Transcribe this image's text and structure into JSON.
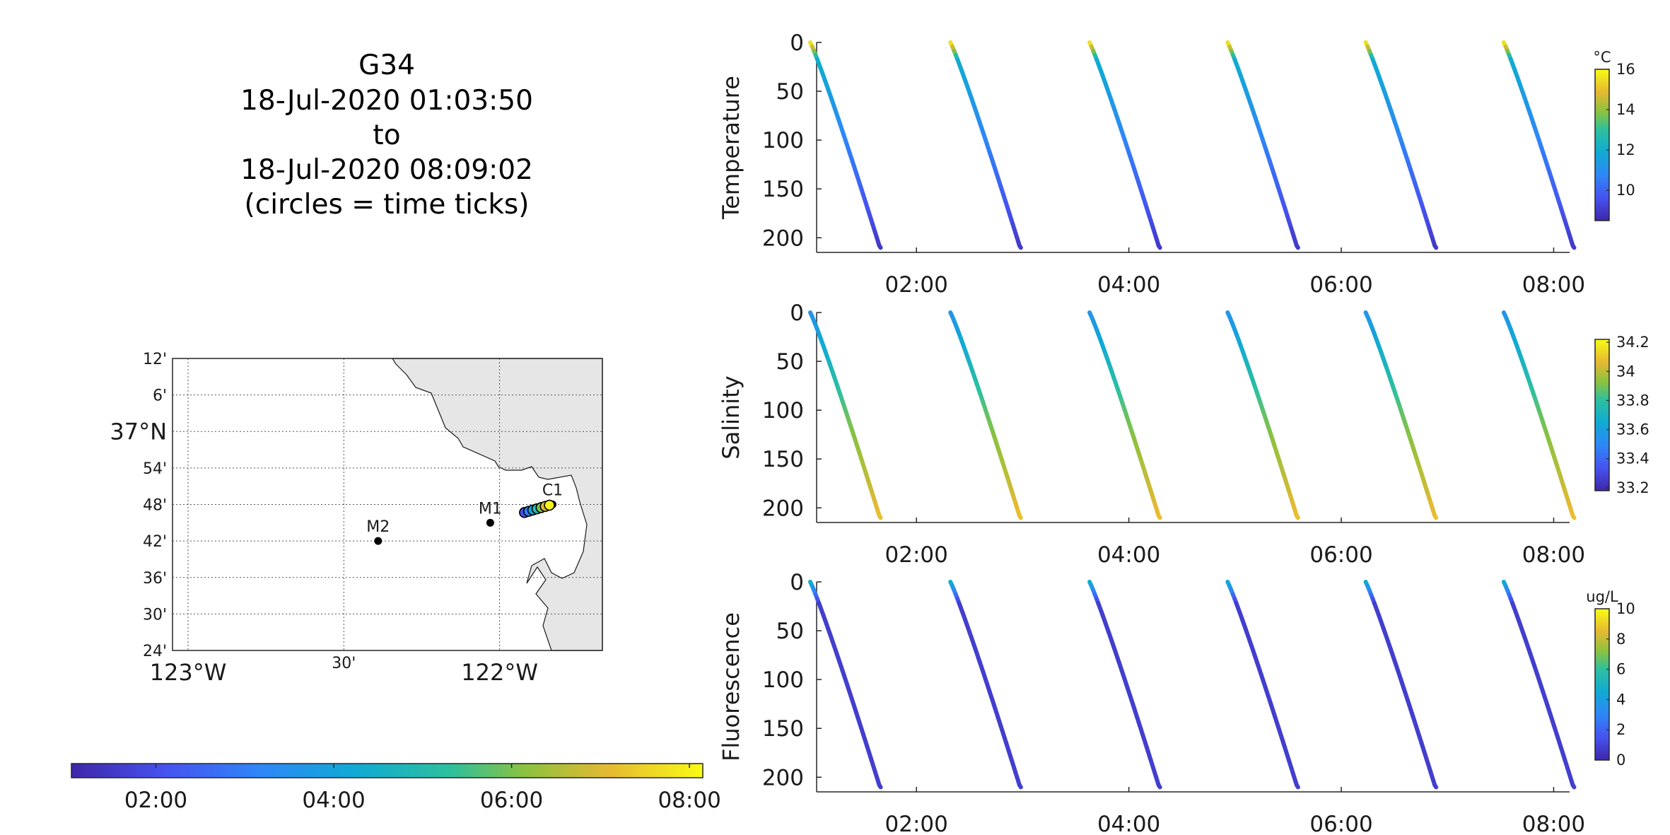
{
  "title": {
    "line1": "G34",
    "line2": "18-Jul-2020 01:03:50",
    "line3": "to",
    "line4": "18-Jul-2020 08:09:02",
    "line5": "(circles = time ticks)"
  },
  "chart_data": [
    {
      "type": "map",
      "lat_labels": [
        "12'",
        "6'",
        "37°N",
        "54'",
        "48'",
        "42'",
        "36'",
        "30'",
        "24'"
      ],
      "lon_labels": [
        "123°W",
        "30'",
        "122°W"
      ],
      "lat_range": [
        36.4,
        37.2
      ],
      "lon_range": [
        -123.05,
        -121.67
      ],
      "grid": true,
      "land_color": "#e6e6e6",
      "stations": [
        {
          "name": "M2",
          "lon": -122.39,
          "lat": 36.7
        },
        {
          "name": "M1",
          "lon": -122.03,
          "lat": 36.75
        },
        {
          "name": "C1",
          "lon": -121.83,
          "lat": 36.8
        }
      ],
      "track": {
        "lon_start": -121.92,
        "lat_start": 36.778,
        "lon_end": -121.84,
        "lat_end": 36.798,
        "time_ticks": [
          "02:00",
          "03:00",
          "04:00",
          "05:00",
          "06:00",
          "07:00",
          "08:00"
        ]
      },
      "colorbar": {
        "orientation": "horizontal",
        "ticks": [
          "02:00",
          "04:00",
          "06:00",
          "08:00"
        ],
        "range": [
          "01:03",
          "08:09"
        ]
      }
    },
    {
      "type": "scatter",
      "ylabel": "Temperature",
      "ylim": [
        0,
        215
      ],
      "yticks": [
        0,
        50,
        100,
        150,
        200
      ],
      "y_reversed": true,
      "xticks": [
        "02:00",
        "04:00",
        "06:00",
        "08:00"
      ],
      "xrange_hours": [
        1.06,
        8.15
      ],
      "colorbar": {
        "unit": "°C",
        "ticks": [
          10,
          12,
          14,
          16
        ],
        "range": [
          8.5,
          16
        ]
      },
      "profiles_start_hours": [
        1.0,
        2.32,
        3.63,
        4.93,
        6.23,
        7.53
      ],
      "profile_duration_hours": 0.65,
      "max_depth": 208,
      "surface_value": 15.5,
      "near_surface_value": 12.0,
      "bottom_value": 9.0
    },
    {
      "type": "scatter",
      "ylabel": "Salinity",
      "ylim": [
        0,
        215
      ],
      "yticks": [
        0,
        50,
        100,
        150,
        200
      ],
      "y_reversed": true,
      "xticks": [
        "02:00",
        "04:00",
        "06:00",
        "08:00"
      ],
      "xrange_hours": [
        1.06,
        8.15
      ],
      "colorbar": {
        "unit": "",
        "ticks": [
          "33.2",
          "33.4",
          "33.6",
          "33.8",
          "34",
          "34.2"
        ],
        "range": [
          33.18,
          34.22
        ]
      },
      "profiles_start_hours": [
        1.0,
        2.32,
        3.63,
        4.93,
        6.23,
        7.53
      ],
      "profile_duration_hours": 0.65,
      "max_depth": 208,
      "surface_value": 33.55,
      "mid_value": 33.88,
      "bottom_value": 34.08
    },
    {
      "type": "scatter",
      "ylabel": "Fluorescence",
      "ylim": [
        0,
        215
      ],
      "yticks": [
        0,
        50,
        100,
        150,
        200
      ],
      "y_reversed": true,
      "xticks": [
        "02:00",
        "04:00",
        "06:00",
        "08:00"
      ],
      "xrange_hours": [
        1.06,
        8.15
      ],
      "colorbar": {
        "unit": "ug/L",
        "ticks": [
          0,
          2,
          4,
          6,
          8,
          10
        ],
        "range": [
          0,
          10
        ]
      },
      "profiles_start_hours": [
        1.0,
        2.32,
        3.63,
        4.93,
        6.23,
        7.53
      ],
      "profile_duration_hours": 0.65,
      "max_depth": 208,
      "surface_value": 4.5,
      "background_value": 0.8
    }
  ]
}
